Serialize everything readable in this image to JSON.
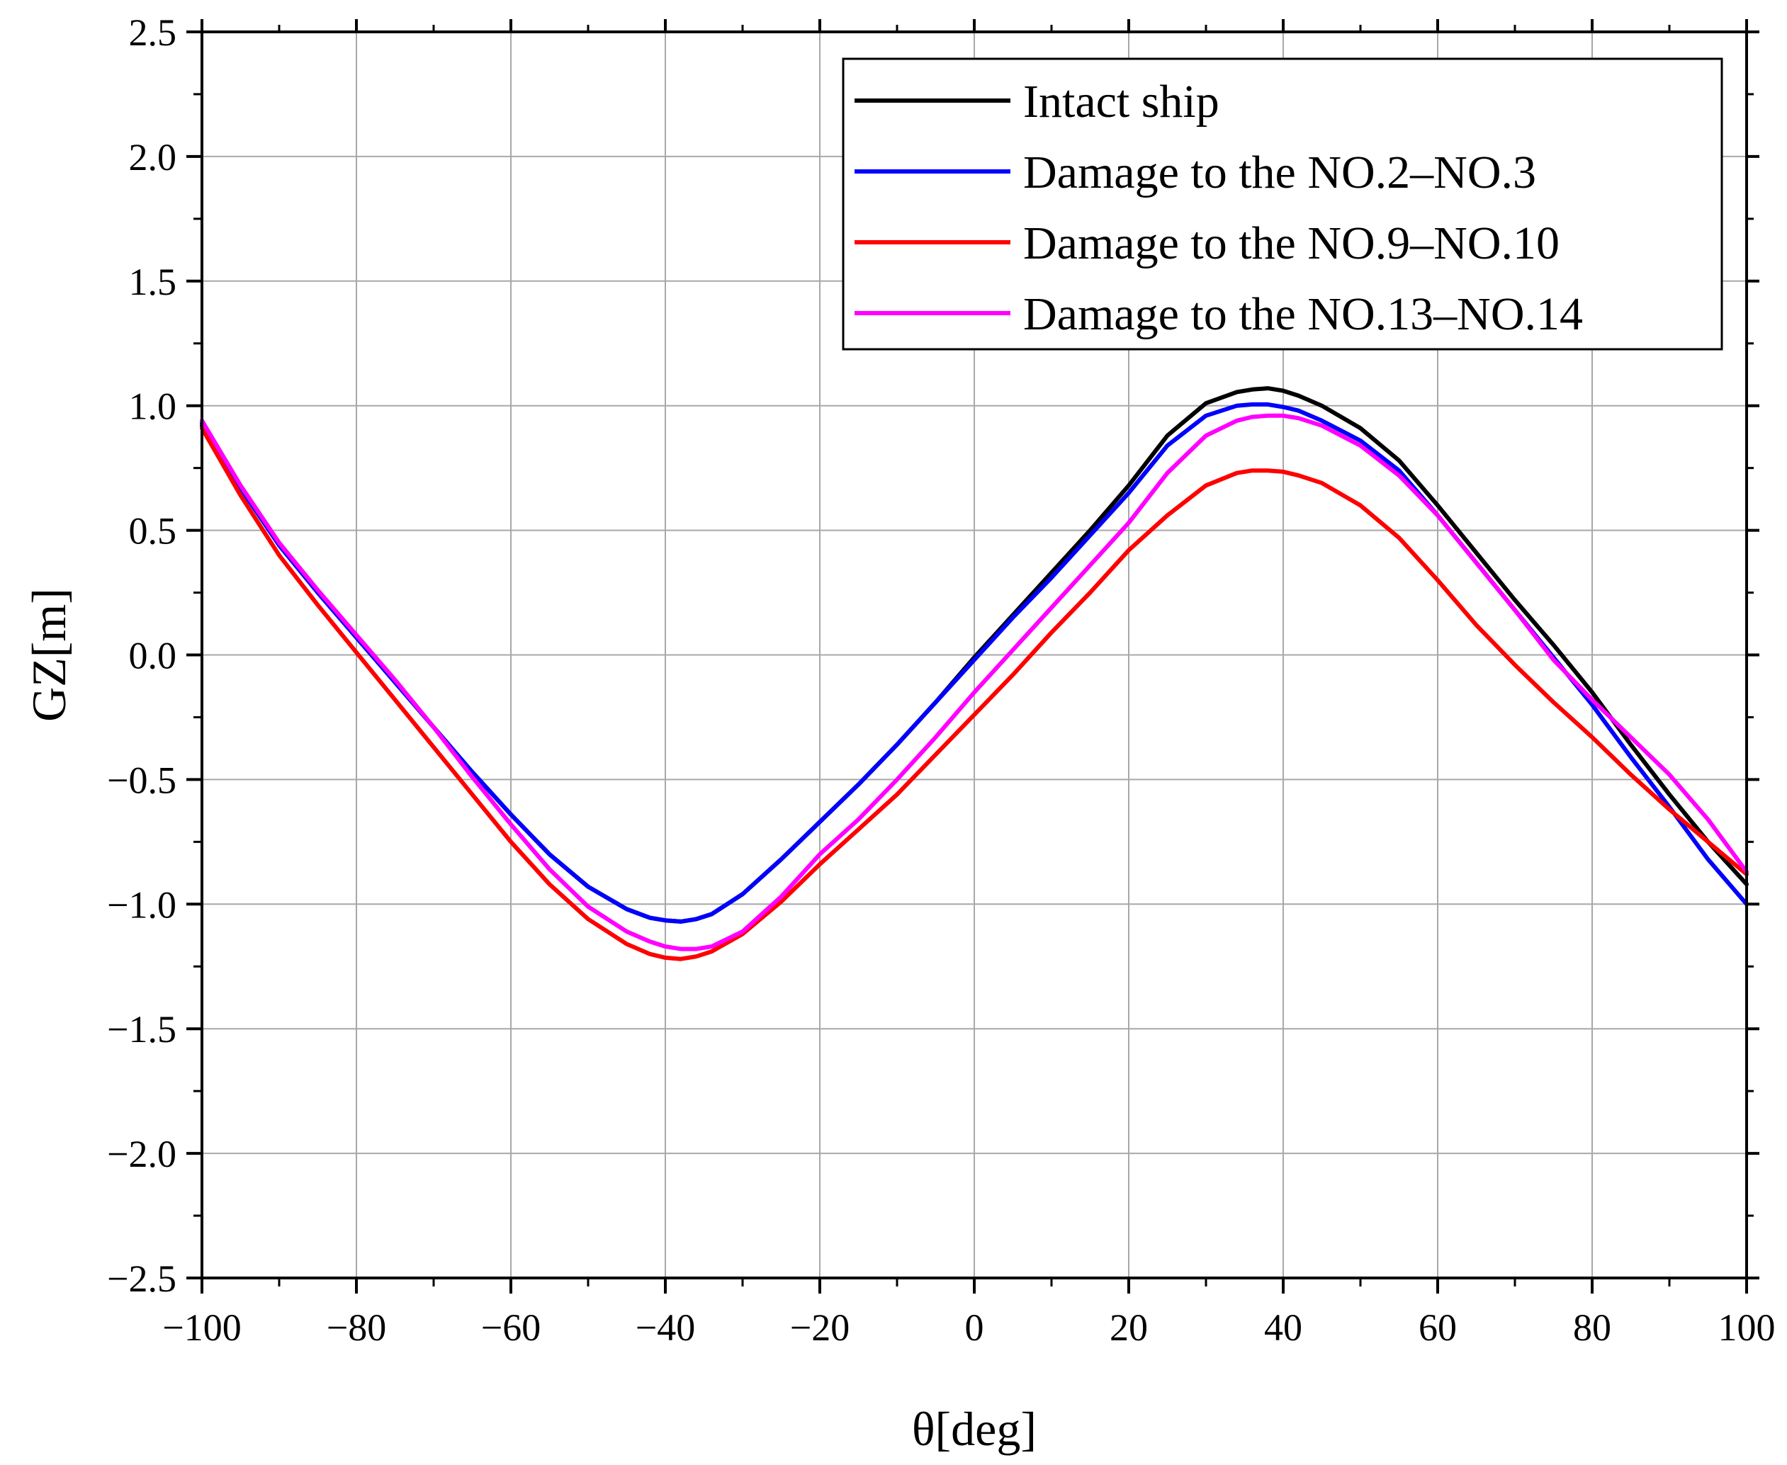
{
  "chart_data": {
    "type": "line",
    "title": "",
    "xlabel": "θ[deg]",
    "ylabel": "GZ[m]",
    "xlim": [
      -100,
      100
    ],
    "ylim": [
      -2.5,
      2.5
    ],
    "x_ticks": [
      -100,
      -80,
      -60,
      -40,
      -20,
      0,
      20,
      40,
      60,
      80,
      100
    ],
    "x_tick_labels": [
      "−100",
      "−80",
      "−60",
      "−40",
      "−20",
      "0",
      "20",
      "40",
      "60",
      "80",
      "100"
    ],
    "y_ticks": [
      -2.5,
      -2.0,
      -1.5,
      -1.0,
      -0.5,
      0.0,
      0.5,
      1.0,
      1.5,
      2.0,
      2.5
    ],
    "y_tick_labels": [
      "−2.5",
      "−2.0",
      "−1.5",
      "−1.0",
      "−0.5",
      "0.0",
      "0.5",
      "1.0",
      "1.5",
      "2.0",
      "2.5"
    ],
    "grid": true,
    "legend_position": "top-right",
    "x": [
      -100,
      -95,
      -90,
      -85,
      -80,
      -75,
      -70,
      -65,
      -60,
      -55,
      -50,
      -45,
      -42,
      -40,
      -38,
      -36,
      -34,
      -30,
      -25,
      -20,
      -15,
      -10,
      -5,
      0,
      5,
      10,
      15,
      20,
      25,
      30,
      34,
      36,
      38,
      40,
      42,
      45,
      50,
      55,
      60,
      65,
      70,
      75,
      80,
      85,
      90,
      95,
      100
    ],
    "series": [
      {
        "name": "Intact ship",
        "color": "#000000",
        "values": [
          0.92,
          0.67,
          0.44,
          0.25,
          0.07,
          -0.11,
          -0.29,
          -0.47,
          -0.64,
          -0.8,
          -0.93,
          -1.02,
          -1.055,
          -1.065,
          -1.07,
          -1.06,
          -1.04,
          -0.96,
          -0.82,
          -0.67,
          -0.52,
          -0.36,
          -0.19,
          -0.01,
          0.16,
          0.33,
          0.5,
          0.68,
          0.88,
          1.01,
          1.055,
          1.065,
          1.07,
          1.06,
          1.04,
          1.0,
          0.91,
          0.78,
          0.6,
          0.41,
          0.22,
          0.04,
          -0.15,
          -0.36,
          -0.56,
          -0.75,
          -0.92
        ]
      },
      {
        "name": "Damage to the NO.2–NO.3",
        "color": "#0000ff",
        "values": [
          0.93,
          0.67,
          0.44,
          0.25,
          0.07,
          -0.11,
          -0.29,
          -0.47,
          -0.64,
          -0.8,
          -0.93,
          -1.02,
          -1.055,
          -1.065,
          -1.07,
          -1.06,
          -1.04,
          -0.96,
          -0.82,
          -0.67,
          -0.52,
          -0.36,
          -0.19,
          -0.02,
          0.15,
          0.31,
          0.48,
          0.65,
          0.84,
          0.96,
          1.0,
          1.005,
          1.005,
          0.995,
          0.98,
          0.94,
          0.86,
          0.74,
          0.56,
          0.37,
          0.18,
          -0.01,
          -0.2,
          -0.41,
          -0.61,
          -0.82,
          -1.0
        ]
      },
      {
        "name": "Damage to the NO.9–NO.10",
        "color": "#ff0000",
        "values": [
          0.91,
          0.64,
          0.4,
          0.2,
          0.01,
          -0.18,
          -0.37,
          -0.56,
          -0.75,
          -0.92,
          -1.06,
          -1.16,
          -1.2,
          -1.215,
          -1.22,
          -1.21,
          -1.19,
          -1.12,
          -0.99,
          -0.84,
          -0.7,
          -0.56,
          -0.4,
          -0.24,
          -0.08,
          0.09,
          0.25,
          0.42,
          0.56,
          0.68,
          0.73,
          0.74,
          0.74,
          0.735,
          0.72,
          0.69,
          0.6,
          0.47,
          0.3,
          0.12,
          -0.04,
          -0.19,
          -0.33,
          -0.48,
          -0.62,
          -0.75,
          -0.88
        ]
      },
      {
        "name": "Damage to the NO.13–NO.14",
        "color": "#ff00ff",
        "values": [
          0.94,
          0.68,
          0.45,
          0.26,
          0.08,
          -0.1,
          -0.29,
          -0.49,
          -0.68,
          -0.86,
          -1.01,
          -1.11,
          -1.15,
          -1.17,
          -1.18,
          -1.18,
          -1.17,
          -1.11,
          -0.97,
          -0.8,
          -0.66,
          -0.5,
          -0.33,
          -0.15,
          0.02,
          0.19,
          0.36,
          0.53,
          0.73,
          0.88,
          0.94,
          0.955,
          0.96,
          0.96,
          0.95,
          0.92,
          0.84,
          0.72,
          0.56,
          0.37,
          0.18,
          -0.02,
          -0.18,
          -0.33,
          -0.48,
          -0.66,
          -0.87
        ]
      }
    ]
  }
}
